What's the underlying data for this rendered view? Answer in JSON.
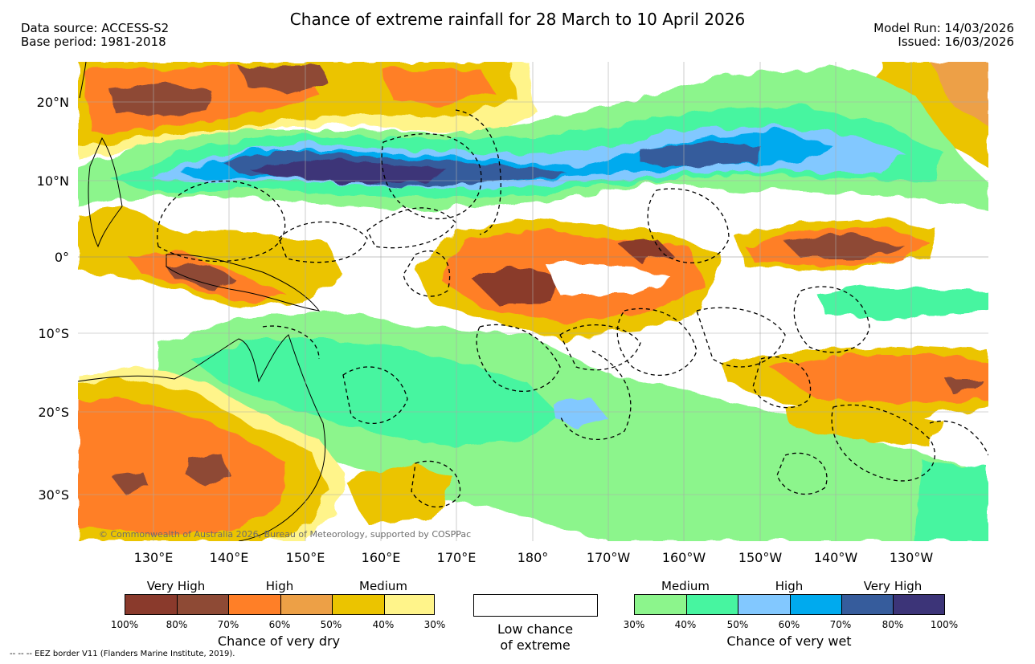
{
  "header": {
    "title": "Chance of extreme rainfall for 28 March to 10 April 2026",
    "data_source": "Data source: ACCESS-S2",
    "base_period": "Base period: 1981-2018",
    "model_run": "Model Run: 14/03/2026",
    "issued": "Issued: 16/03/2026"
  },
  "map": {
    "lat_labels": [
      "20°N",
      "10°N",
      "0°",
      "10°S",
      "20°S",
      "30°S"
    ],
    "lon_labels": [
      "130°E",
      "140°E",
      "150°E",
      "160°E",
      "170°E",
      "180°",
      "170°W",
      "160°W",
      "150°W",
      "140°W",
      "130°W"
    ],
    "copyright": "© Commonwealth of Australia 2026, Bureau of Meteorology, supported by COSPPac"
  },
  "legend": {
    "dry": {
      "headings": [
        "Very High",
        "High",
        "Medium"
      ],
      "ticks": [
        "100%",
        "80%",
        "70%",
        "60%",
        "50%",
        "40%",
        "30%"
      ],
      "colors": [
        "#8a3a2c",
        "#8e4a35",
        "#ff7f27",
        "#eda046",
        "#ebc400",
        "#fff48a"
      ],
      "title": "Chance of very dry"
    },
    "low": {
      "line1": "Low chance",
      "line2": "of extreme"
    },
    "wet": {
      "headings": [
        "Medium",
        "High",
        "Very High"
      ],
      "ticks": [
        "30%",
        "40%",
        "50%",
        "60%",
        "70%",
        "80%",
        "100%"
      ],
      "colors": [
        "#8cf58c",
        "#47f5a0",
        "#82c8ff",
        "#00aaee",
        "#365c9c",
        "#3c3478"
      ],
      "title": "Chance of very wet"
    },
    "eez_note": "-- -- -- EEZ border V11 (Flanders Marine Institute, 2019)."
  }
}
